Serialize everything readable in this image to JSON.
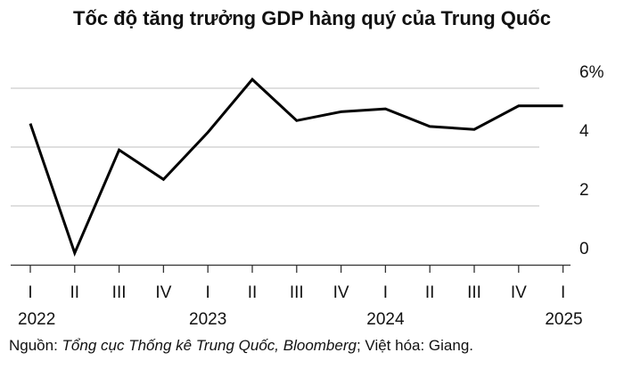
{
  "chart_data": {
    "type": "line",
    "title": "Tốc độ tăng trưởng GDP hàng quý của Trung Quốc",
    "x_categories": [
      "I",
      "II",
      "III",
      "IV",
      "I",
      "II",
      "III",
      "IV",
      "I",
      "II",
      "III",
      "IV",
      "I"
    ],
    "year_labels": [
      {
        "label": "2022",
        "index": 0
      },
      {
        "label": "2023",
        "index": 4
      },
      {
        "label": "2024",
        "index": 8
      },
      {
        "label": "2025",
        "index": 12
      }
    ],
    "series": [
      {
        "values": [
          4.8,
          0.4,
          3.9,
          2.9,
          4.5,
          6.3,
          4.9,
          5.2,
          5.3,
          4.7,
          4.6,
          5.4,
          5.4
        ],
        "color": "#000000"
      }
    ],
    "y_ticks": [
      {
        "value": 6,
        "label": "6%"
      },
      {
        "value": 4,
        "label": "4"
      },
      {
        "value": 2,
        "label": "2"
      },
      {
        "value": 0,
        "label": "0"
      }
    ],
    "ylim": [
      0,
      6
    ],
    "grid": true,
    "gridline_color": "#cccccc"
  },
  "source": {
    "prefix": "Nguồn: ",
    "italic": "Tổng cục Thống kê Trung Quốc, Bloomberg",
    "suffix": "; Việt hóa: Giang."
  }
}
